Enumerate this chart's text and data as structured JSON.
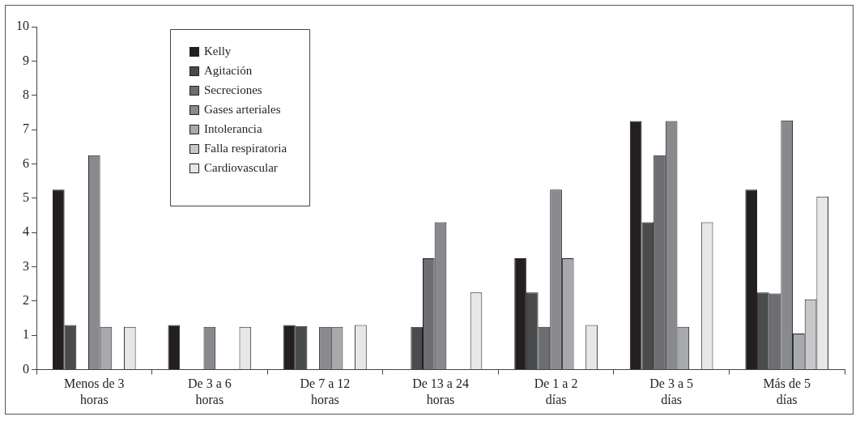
{
  "chart_data": {
    "type": "bar",
    "categories": [
      "Menos de 3 horas",
      "De 3 a 6 horas",
      "De 7 a 12 horas",
      "De 13 a 24 horas",
      "De 1 a 2 días",
      "De 3 a 5 días",
      "Más de 5 días"
    ],
    "series": [
      {
        "name": "Kelly",
        "color": "#231f20",
        "values": [
          5.25,
          1.3,
          1.3,
          0,
          3.25,
          7.25,
          5.25
        ]
      },
      {
        "name": "Agitación",
        "color": "#4a4b4d",
        "values": [
          1.3,
          0,
          1.27,
          1.25,
          2.25,
          4.3,
          2.25
        ]
      },
      {
        "name": "Secreciones",
        "color": "#6d6e71",
        "values": [
          0,
          0,
          0,
          3.25,
          1.25,
          6.25,
          2.22
        ]
      },
      {
        "name": "Gases arteriales",
        "color": "#898a8e",
        "values": [
          6.25,
          1.25,
          1.25,
          4.3,
          5.25,
          7.25,
          7.27
        ]
      },
      {
        "name": "Intolerancia",
        "color": "#a7a9ac",
        "values": [
          1.25,
          0,
          1.25,
          0,
          3.25,
          1.25,
          1.05
        ]
      },
      {
        "name": "Falla respiratoria",
        "color": "#c7c8ca",
        "values": [
          0,
          0,
          0,
          0,
          0,
          0,
          2.05
        ]
      },
      {
        "name": "Cardiovascular",
        "color": "#e6e7e8",
        "values": [
          1.25,
          1.25,
          1.3,
          2.25,
          1.3,
          4.3,
          5.05
        ]
      }
    ],
    "ylim": [
      0,
      10
    ],
    "yticks": [
      0,
      1,
      2,
      3,
      4,
      5,
      6,
      7,
      8,
      9,
      10
    ],
    "grid": false,
    "legend": "top left"
  }
}
